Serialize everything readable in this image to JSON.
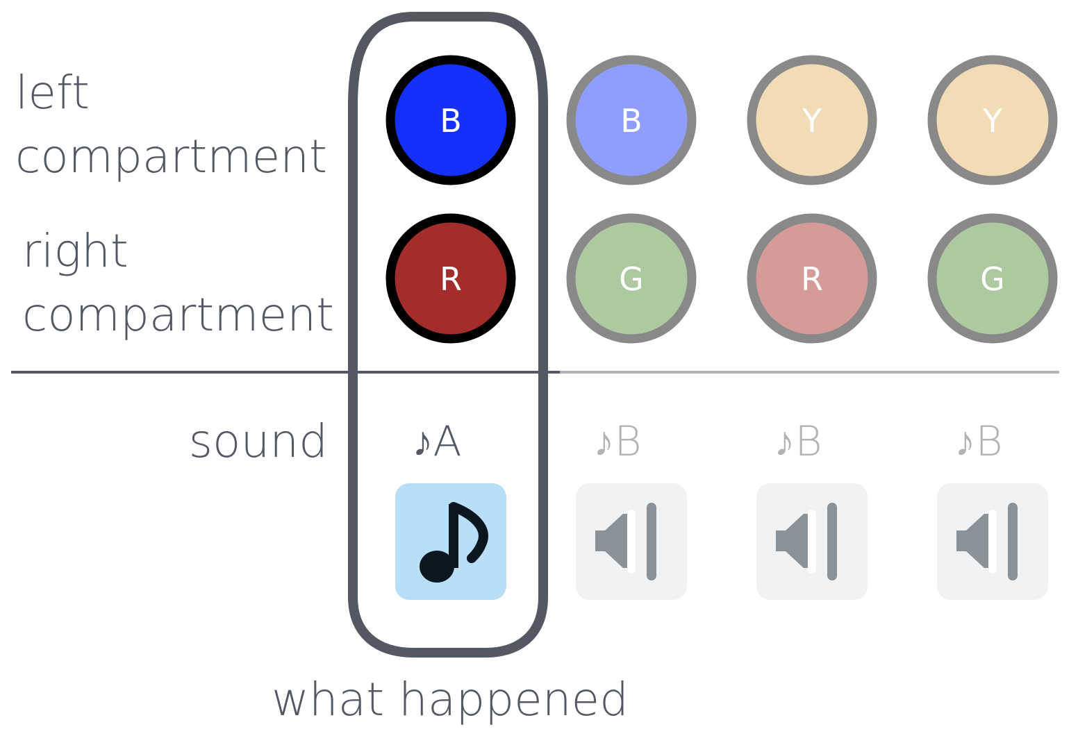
{
  "labels": {
    "left_line1": "left",
    "left_line2": "compartment",
    "right_line1": "right",
    "right_line2": "compartment",
    "sound": "sound",
    "caption": "what happened"
  },
  "columns": [
    {
      "highlighted": true,
      "left": {
        "letter": "B",
        "fill": "#1530fb",
        "stroke": "#000000"
      },
      "right": {
        "letter": "R",
        "fill": "#a22d2a",
        "stroke": "#000000"
      },
      "note": "♪A",
      "note_color": "#535862",
      "icon": "music-note-icon",
      "icon_bg": "#b7e0f8"
    },
    {
      "highlighted": false,
      "left": {
        "letter": "B",
        "fill": "#8e9efa",
        "stroke": "#898989"
      },
      "right": {
        "letter": "G",
        "fill": "#aec9a0",
        "stroke": "#898989"
      },
      "note": "♪B",
      "note_color": "#b3b3b3",
      "icon": "speaker-muted-icon",
      "icon_bg": "#f1f2f4"
    },
    {
      "highlighted": false,
      "left": {
        "letter": "Y",
        "fill": "#f2dcb5",
        "stroke": "#898989"
      },
      "right": {
        "letter": "R",
        "fill": "#d59b99",
        "stroke": "#898989"
      },
      "note": "♪B",
      "note_color": "#b3b3b3",
      "icon": "speaker-muted-icon",
      "icon_bg": "#f1f2f4"
    },
    {
      "highlighted": false,
      "left": {
        "letter": "Y",
        "fill": "#f2dcb5",
        "stroke": "#898989"
      },
      "right": {
        "letter": "G",
        "fill": "#aec9a0",
        "stroke": "#898989"
      },
      "note": "♪B",
      "note_color": "#b3b3b3",
      "icon": "speaker-muted-icon",
      "icon_bg": "#f1f2f4"
    }
  ],
  "colors": {
    "highlight_border": "#535862",
    "divider_dark": "#535862",
    "divider_light": "#b3b3b3",
    "icon_dark": "#0b1720",
    "icon_gray": "#8b9297"
  }
}
